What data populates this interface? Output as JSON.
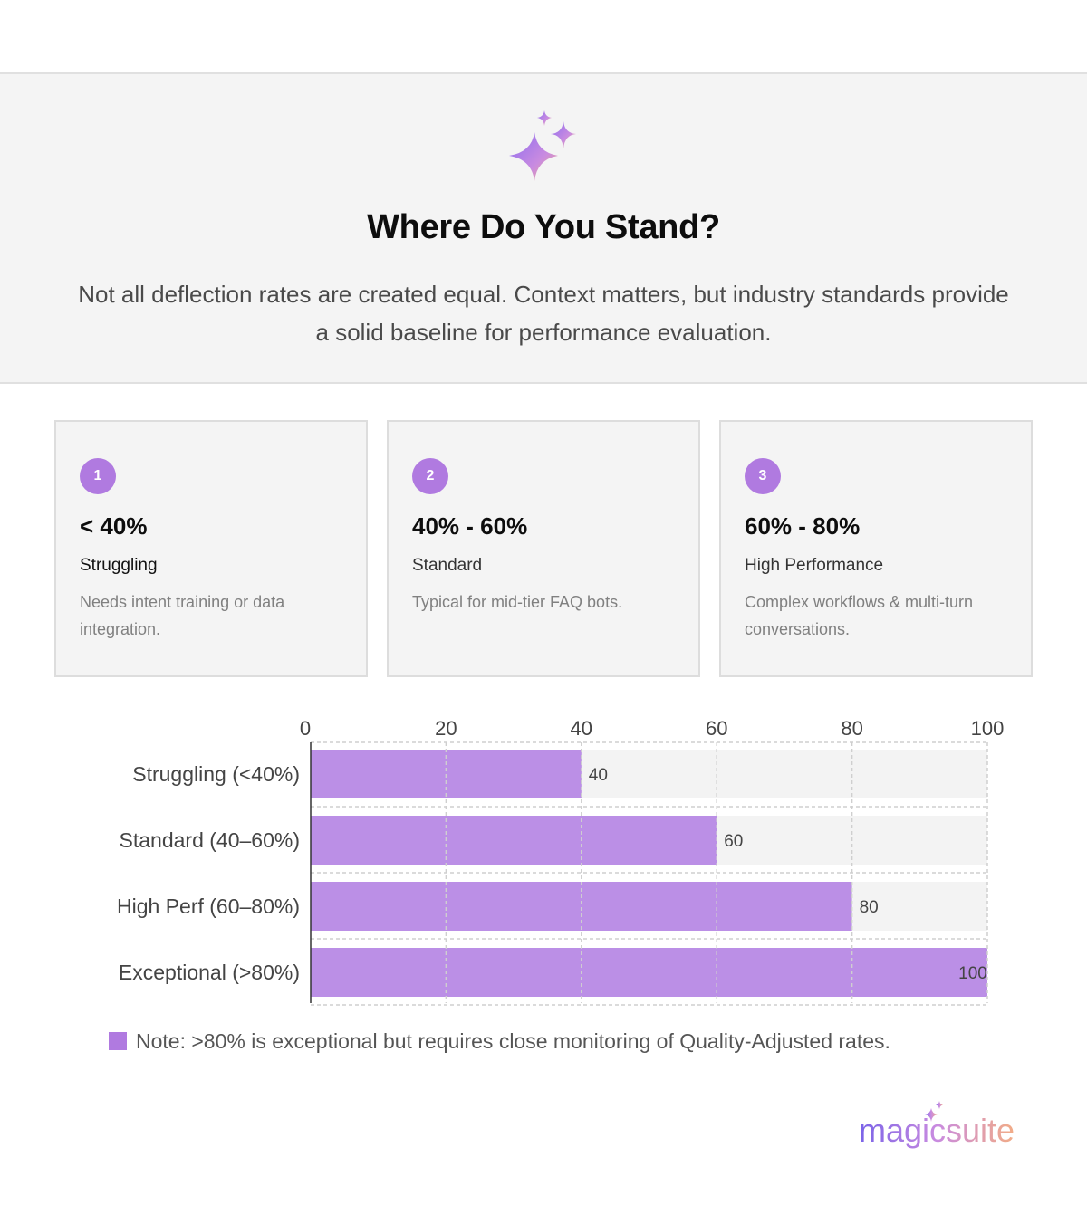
{
  "hero": {
    "title": "Where Do You Stand?",
    "subtitle": "Not all deflection rates are created equal. Context matters, but industry standards provide a solid baseline for performance evaluation.",
    "icon": "sparkles-icon"
  },
  "cards": [
    {
      "number": "1",
      "range": "< 40%",
      "label": "Struggling",
      "description": "Needs intent training or data integration."
    },
    {
      "number": "2",
      "range": "40% - 60%",
      "label": "Standard",
      "description": "Typical for mid-tier FAQ bots."
    },
    {
      "number": "3",
      "range": "60% - 80%",
      "label": "High Performance",
      "description": "Complex workflows & multi-turn conversations."
    }
  ],
  "chart_data": {
    "type": "bar",
    "orientation": "horizontal",
    "categories": [
      "Struggling (<40%)",
      "Standard (40–60%)",
      "High Perf (60–80%)",
      "Exceptional (>80%)"
    ],
    "values": [
      40,
      60,
      80,
      100
    ],
    "data_labels": [
      "40",
      "60",
      "80",
      "100"
    ],
    "xlim": [
      0,
      100
    ],
    "x_ticks": [
      0,
      20,
      40,
      60,
      80,
      100
    ],
    "x_tick_labels": [
      "0",
      "20",
      "40",
      "60",
      "80",
      "100"
    ],
    "grid": true,
    "bar_color": "#bb8fe6",
    "track_color": "#f3f3f3"
  },
  "legend": {
    "text": "Note: >80% is exceptional but requires close monitoring of Quality-Adjusted rates.",
    "color": "#b07ae0"
  },
  "brand": {
    "logo_text": "magicsuite"
  },
  "colors": {
    "accent": "#b07ae0",
    "panel": "#f4f4f4"
  }
}
